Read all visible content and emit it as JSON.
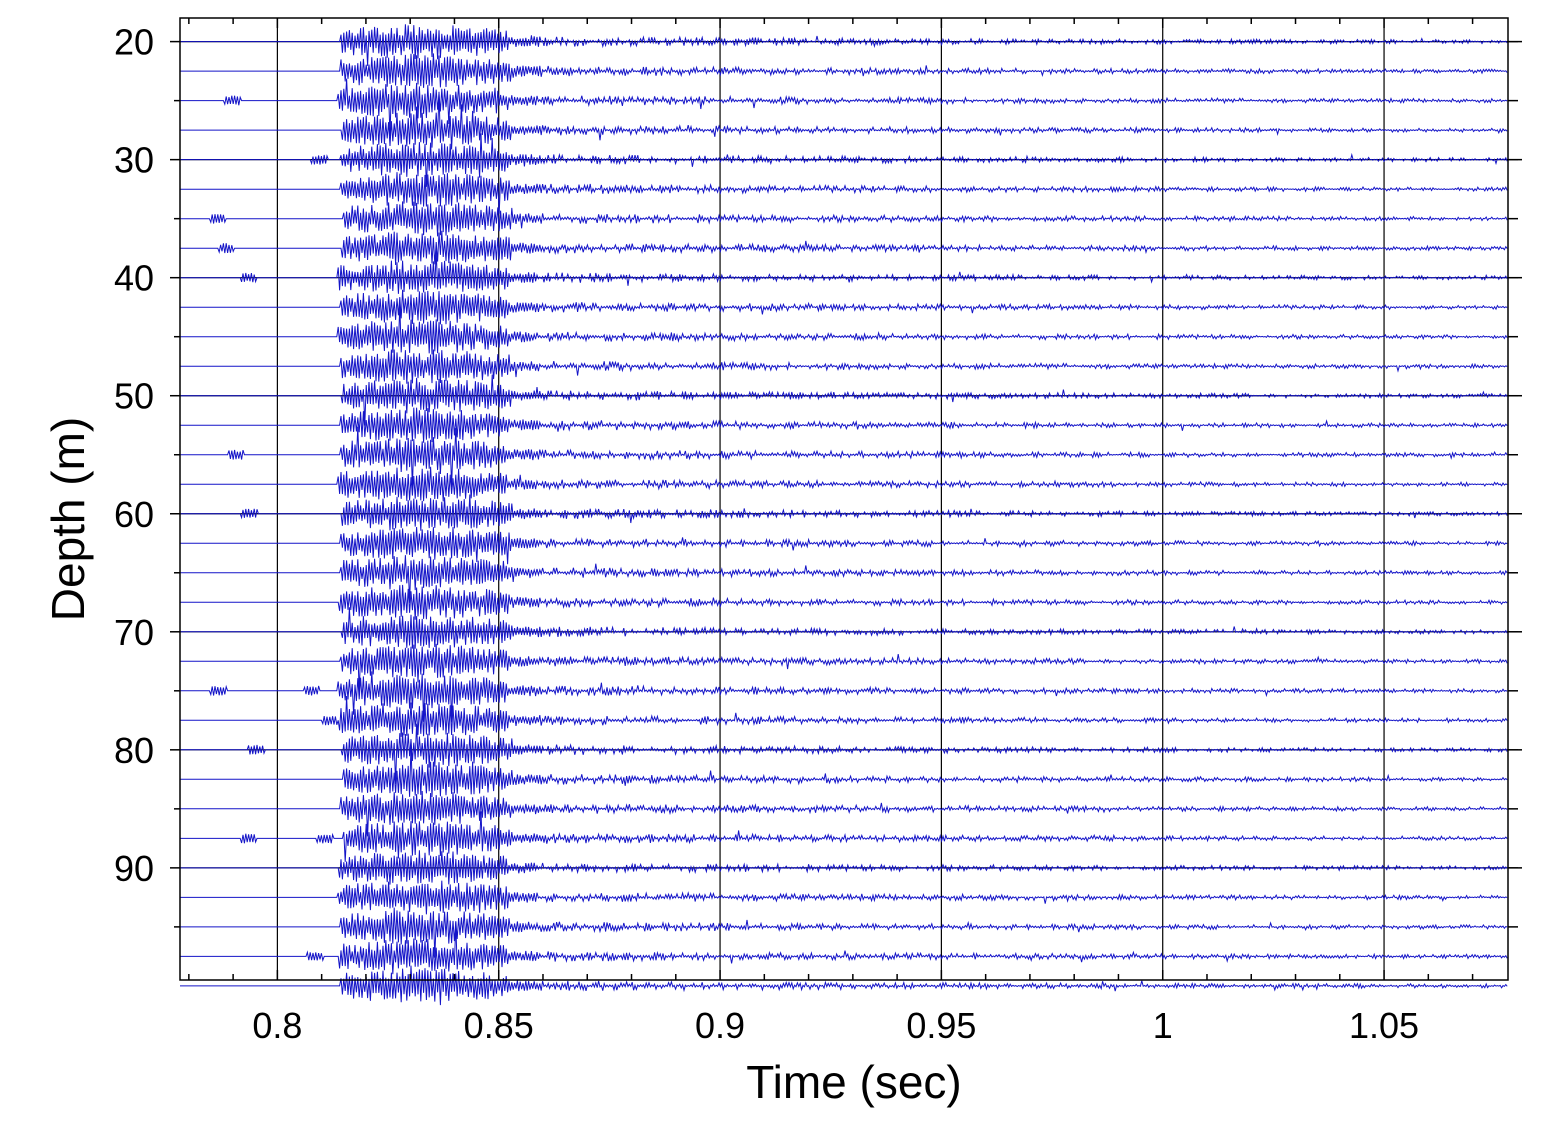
{
  "chart_data": {
    "type": "line",
    "title": "",
    "xlabel": "Time (sec)",
    "ylabel": "Depth (m)",
    "xlim": [
      0.778,
      1.078
    ],
    "ylim": [
      18,
      99.5
    ],
    "y_inverted": true,
    "grid": true,
    "x_ticks": [
      0.8,
      0.85,
      0.9,
      0.95,
      1,
      1.05
    ],
    "x_tick_labels": [
      "0.8",
      "0.85",
      "0.9",
      "0.95",
      "1",
      "1.05"
    ],
    "y_ticks": [
      20,
      30,
      40,
      50,
      60,
      70,
      80,
      90
    ],
    "y_tick_labels": [
      "20",
      "30",
      "40",
      "50",
      "60",
      "70",
      "80",
      "90"
    ],
    "trace_color": "#1414c8",
    "traces": {
      "count": 33,
      "depth_start": 20,
      "depth_step": 2.5,
      "onset_time": 0.814,
      "end_time": 1.078
    }
  }
}
